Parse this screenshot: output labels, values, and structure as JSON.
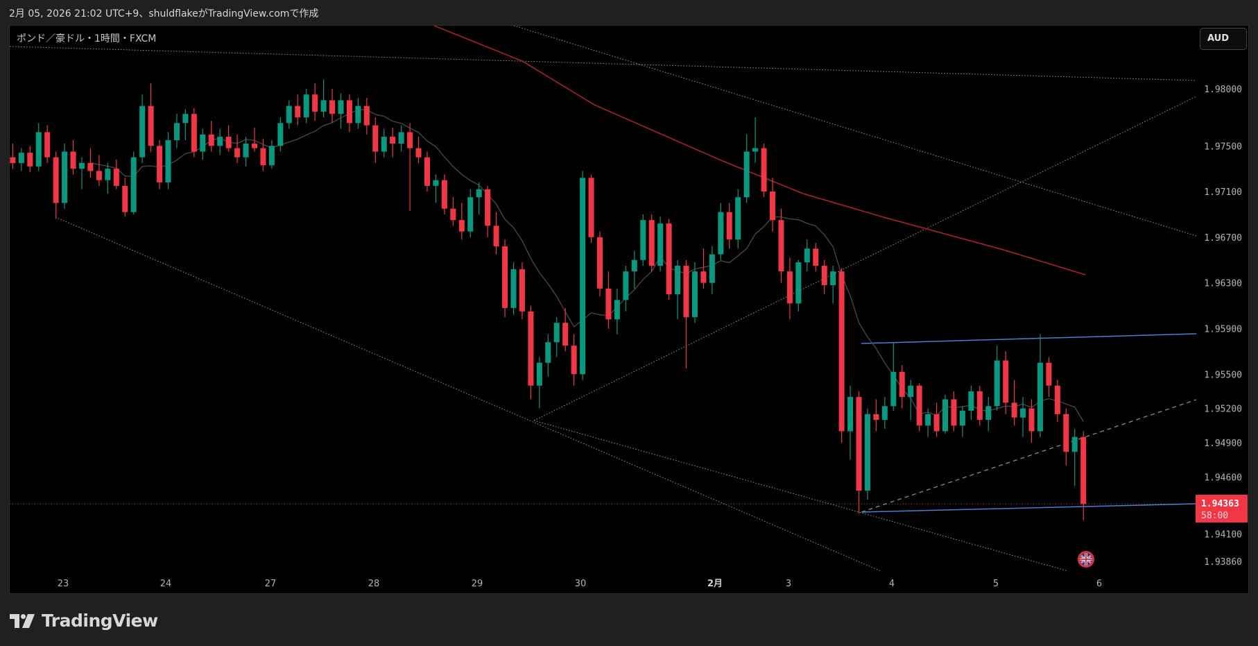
{
  "caption": "2月 05, 2026 21:02 UTC+9、shuldflakeがTradingView.comで作成",
  "symbol_title": "ポンド／豪ドル・1時間・FXCM",
  "currency_button": "AUD",
  "logo_text": "TradingView",
  "colors": {
    "up": "#089981",
    "down": "#f23645",
    "ma_slow": "#b2202c",
    "ma_fast": "#4a4a4a",
    "trendline_blue": "#4a7fd4",
    "background": "#000000"
  },
  "event_icon": "uk-flag-icon",
  "chart_data": {
    "type": "candlestick",
    "title": "ポンド／豪ドル・1時間・FXCM",
    "ylim": [
      1.9376,
      1.9855
    ],
    "y_ticks": [
      "1.98000",
      "1.97500",
      "1.97100",
      "1.96700",
      "1.96300",
      "1.95900",
      "1.95500",
      "1.95200",
      "1.94900",
      "1.94600",
      "1.94100",
      "1.93860"
    ],
    "x_ticks": [
      "23",
      "24",
      "27",
      "28",
      "29",
      "30",
      "2月",
      "3",
      "4",
      "5",
      "6"
    ],
    "current_price": "1.94363",
    "countdown": "58:00",
    "grid": false,
    "ohlc": [
      [
        1.974,
        1.9752,
        1.973,
        1.9735
      ],
      [
        1.9735,
        1.9748,
        1.9728,
        1.9744
      ],
      [
        1.9744,
        1.975,
        1.9727,
        1.9732
      ],
      [
        1.9732,
        1.977,
        1.9728,
        1.9762
      ],
      [
        1.9762,
        1.9768,
        1.9735,
        1.974
      ],
      [
        1.974,
        1.9745,
        1.9686,
        1.97
      ],
      [
        1.97,
        1.9752,
        1.9695,
        1.9745
      ],
      [
        1.9745,
        1.9755,
        1.9725,
        1.973
      ],
      [
        1.973,
        1.974,
        1.9712,
        1.9735
      ],
      [
        1.9735,
        1.9748,
        1.9722,
        1.9728
      ],
      [
        1.9728,
        1.9742,
        1.9715,
        1.972
      ],
      [
        1.972,
        1.9735,
        1.9708,
        1.973
      ],
      [
        1.973,
        1.9738,
        1.9712,
        1.9715
      ],
      [
        1.9715,
        1.9722,
        1.9688,
        1.9692
      ],
      [
        1.9692,
        1.9745,
        1.969,
        1.974
      ],
      [
        1.974,
        1.9795,
        1.9735,
        1.9785
      ],
      [
        1.9785,
        1.9805,
        1.9745,
        1.975
      ],
      [
        1.975,
        1.9755,
        1.9712,
        1.9718
      ],
      [
        1.9718,
        1.9762,
        1.9712,
        1.9755
      ],
      [
        1.9755,
        1.9778,
        1.9748,
        1.977
      ],
      [
        1.977,
        1.9782,
        1.9755,
        1.9778
      ],
      [
        1.9778,
        1.9783,
        1.974,
        1.9745
      ],
      [
        1.9745,
        1.9765,
        1.9738,
        1.976
      ],
      [
        1.976,
        1.9772,
        1.9745,
        1.975
      ],
      [
        1.975,
        1.9765,
        1.9742,
        1.9758
      ],
      [
        1.9758,
        1.9768,
        1.9745,
        1.9748
      ],
      [
        1.9748,
        1.976,
        1.9735,
        1.974
      ],
      [
        1.974,
        1.9758,
        1.9732,
        1.9752
      ],
      [
        1.9752,
        1.9766,
        1.9745,
        1.9748
      ],
      [
        1.9748,
        1.9756,
        1.9728,
        1.9733
      ],
      [
        1.9733,
        1.9755,
        1.973,
        1.975
      ],
      [
        1.975,
        1.9775,
        1.9745,
        1.977
      ],
      [
        1.977,
        1.979,
        1.9765,
        1.9785
      ],
      [
        1.9785,
        1.9795,
        1.9768,
        1.9775
      ],
      [
        1.9775,
        1.98,
        1.977,
        1.9795
      ],
      [
        1.9795,
        1.9805,
        1.9772,
        1.978
      ],
      [
        1.978,
        1.9808,
        1.9775,
        1.979
      ],
      [
        1.979,
        1.98,
        1.977,
        1.9778
      ],
      [
        1.9778,
        1.9796,
        1.9765,
        1.979
      ],
      [
        1.979,
        1.9795,
        1.9762,
        1.977
      ],
      [
        1.977,
        1.9792,
        1.9765,
        1.9785
      ],
      [
        1.9785,
        1.9792,
        1.976,
        1.9768
      ],
      [
        1.9768,
        1.9775,
        1.9735,
        1.9745
      ],
      [
        1.9745,
        1.9765,
        1.974,
        1.9758
      ],
      [
        1.9758,
        1.9766,
        1.974,
        1.9752
      ],
      [
        1.9752,
        1.9768,
        1.9745,
        1.9762
      ],
      [
        1.9762,
        1.977,
        1.9693,
        1.9748
      ],
      [
        1.9748,
        1.9758,
        1.9735,
        1.974
      ],
      [
        1.974,
        1.9745,
        1.971,
        1.9715
      ],
      [
        1.9715,
        1.9725,
        1.97,
        1.972
      ],
      [
        1.972,
        1.9725,
        1.969,
        1.9695
      ],
      [
        1.9695,
        1.9705,
        1.968,
        1.9685
      ],
      [
        1.9685,
        1.97,
        1.9668,
        1.9675
      ],
      [
        1.9675,
        1.9712,
        1.967,
        1.9705
      ],
      [
        1.9705,
        1.9718,
        1.969,
        1.9712
      ],
      [
        1.9712,
        1.9715,
        1.967,
        1.968
      ],
      [
        1.968,
        1.9692,
        1.9655,
        1.9662
      ],
      [
        1.9662,
        1.9668,
        1.96,
        1.9608
      ],
      [
        1.9608,
        1.9648,
        1.9602,
        1.9642
      ],
      [
        1.9642,
        1.9648,
        1.9598,
        1.9605
      ],
      [
        1.9605,
        1.961,
        1.9528,
        1.954
      ],
      [
        1.954,
        1.9565,
        1.952,
        1.956
      ],
      [
        1.956,
        1.9585,
        1.9548,
        1.9578
      ],
      [
        1.9578,
        1.96,
        1.9565,
        1.9595
      ],
      [
        1.9595,
        1.9608,
        1.957,
        1.9575
      ],
      [
        1.9575,
        1.9585,
        1.954,
        1.955
      ],
      [
        1.955,
        1.9728,
        1.9545,
        1.9722
      ],
      [
        1.9722,
        1.9725,
        1.9665,
        1.967
      ],
      [
        1.967,
        1.9675,
        1.9618,
        1.9625
      ],
      [
        1.9625,
        1.964,
        1.959,
        1.9598
      ],
      [
        1.9598,
        1.9625,
        1.9585,
        1.9615
      ],
      [
        1.9615,
        1.9645,
        1.9605,
        1.964
      ],
      [
        1.964,
        1.9658,
        1.9625,
        1.965
      ],
      [
        1.965,
        1.969,
        1.9645,
        1.9685
      ],
      [
        1.9685,
        1.969,
        1.964,
        1.9645
      ],
      [
        1.9645,
        1.9688,
        1.964,
        1.9682
      ],
      [
        1.9682,
        1.9686,
        1.9615,
        1.962
      ],
      [
        1.962,
        1.965,
        1.9598,
        1.9645
      ],
      [
        1.9645,
        1.965,
        1.9555,
        1.96
      ],
      [
        1.96,
        1.9648,
        1.9595,
        1.964
      ],
      [
        1.964,
        1.966,
        1.9625,
        1.963
      ],
      [
        1.963,
        1.9662,
        1.962,
        1.9655
      ],
      [
        1.9655,
        1.97,
        1.965,
        1.9692
      ],
      [
        1.9692,
        1.97,
        1.966,
        1.9668
      ],
      [
        1.9668,
        1.9712,
        1.966,
        1.9705
      ],
      [
        1.9705,
        1.976,
        1.97,
        1.9745
      ],
      [
        1.9745,
        1.9775,
        1.9735,
        1.9748
      ],
      [
        1.9748,
        1.9752,
        1.9705,
        1.971
      ],
      [
        1.971,
        1.9722,
        1.9675,
        1.9685
      ],
      [
        1.9685,
        1.9695,
        1.963,
        1.964
      ],
      [
        1.964,
        1.9652,
        1.9598,
        1.9612
      ],
      [
        1.9612,
        1.965,
        1.9605,
        1.9648
      ],
      [
        1.9648,
        1.9668,
        1.964,
        1.966
      ],
      [
        1.966,
        1.9665,
        1.964,
        1.9645
      ],
      [
        1.9645,
        1.965,
        1.962,
        1.9628
      ],
      [
        1.9628,
        1.9645,
        1.9612,
        1.964
      ],
      [
        1.964,
        1.9643,
        1.949,
        1.95
      ],
      [
        1.95,
        1.954,
        1.9475,
        1.953
      ],
      [
        1.953,
        1.9535,
        1.9428,
        1.9448
      ],
      [
        1.9448,
        1.952,
        1.944,
        1.9515
      ],
      [
        1.9515,
        1.9528,
        1.95,
        1.951
      ],
      [
        1.951,
        1.953,
        1.9502,
        1.9522
      ],
      [
        1.9522,
        1.9578,
        1.9518,
        1.9552
      ],
      [
        1.9552,
        1.9558,
        1.952,
        1.953
      ],
      [
        1.953,
        1.9545,
        1.951,
        1.954
      ],
      [
        1.954,
        1.9542,
        1.95,
        1.9505
      ],
      [
        1.9505,
        1.952,
        1.9495,
        1.9515
      ],
      [
        1.9515,
        1.9525,
        1.9495,
        1.95
      ],
      [
        1.95,
        1.9532,
        1.9498,
        1.9528
      ],
      [
        1.9528,
        1.9535,
        1.95,
        1.9505
      ],
      [
        1.9505,
        1.9522,
        1.9495,
        1.9518
      ],
      [
        1.9518,
        1.954,
        1.951,
        1.9535
      ],
      [
        1.9535,
        1.954,
        1.9505,
        1.951
      ],
      [
        1.951,
        1.953,
        1.95,
        1.9522
      ],
      [
        1.9522,
        1.9575,
        1.9518,
        1.9562
      ],
      [
        1.9562,
        1.957,
        1.9515,
        1.9525
      ],
      [
        1.9525,
        1.9545,
        1.9505,
        1.9512
      ],
      [
        1.9512,
        1.953,
        1.9495,
        1.952
      ],
      [
        1.952,
        1.9528,
        1.949,
        1.95
      ],
      [
        1.95,
        1.9585,
        1.9495,
        1.956
      ],
      [
        1.956,
        1.9565,
        1.953,
        1.954
      ],
      [
        1.954,
        1.9545,
        1.9508,
        1.9515
      ],
      [
        1.9515,
        1.952,
        1.947,
        1.9482
      ],
      [
        1.9482,
        1.9502,
        1.9452,
        1.9495
      ],
      [
        1.9495,
        1.95,
        1.9422,
        1.94363
      ]
    ]
  }
}
